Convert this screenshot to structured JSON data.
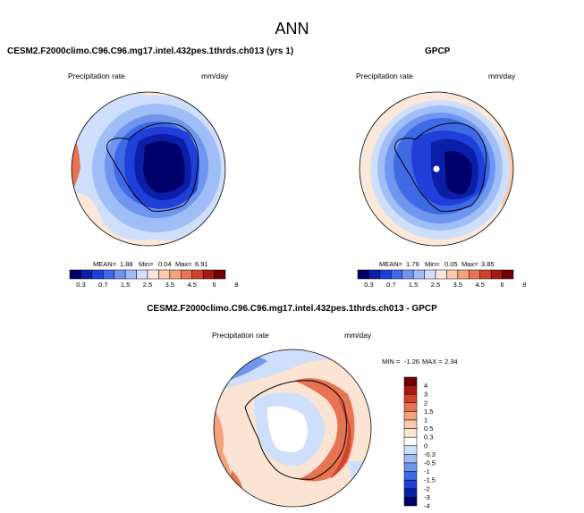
{
  "page_title": "ANN",
  "chart_data": [
    {
      "type": "heatmap",
      "projection": "south-polar-stereographic",
      "title": "CESM2.F2000climo.C96.C96.mg17.intel.432pes.1thrds.ch013 (yrs 1)",
      "variable_label": "Precipitation rate",
      "units_label": "mm/day",
      "stats": {
        "mean_label": "MEAN=",
        "mean": "1.88",
        "min_label": "Min=",
        "min": "0.04",
        "max_label": "Max=",
        "max": "6.91"
      },
      "levels": [
        "0.3",
        "0.7",
        "1",
        "1.5",
        "2",
        "2.5",
        "3",
        "3.5",
        "4",
        "4.5",
        "5",
        "6",
        "7",
        "8"
      ],
      "level_labels": [
        "0.3",
        "0.7",
        "1.5",
        "2.5",
        "3.5",
        "4.5",
        "6",
        "8"
      ],
      "colors": [
        "#00006a",
        "#0a1ea8",
        "#1f3fd8",
        "#3f6ae6",
        "#6f95ef",
        "#9fbdf6",
        "#cfdffb",
        "#fbe8d8",
        "#f8cbaa",
        "#f2a27d",
        "#e67352",
        "#d0422c",
        "#a8180f",
        "#700000"
      ]
    },
    {
      "type": "heatmap",
      "projection": "south-polar-stereographic",
      "title": "GPCP",
      "variable_label": "Precipitation rate",
      "units_label": "mm/day",
      "stats": {
        "mean_label": "MEAN=",
        "mean": "1.79",
        "min_label": "Min=",
        "min": "0.05",
        "max_label": "Max=",
        "max": "3.85"
      },
      "levels": [
        "0.3",
        "0.7",
        "1",
        "1.5",
        "2",
        "2.5",
        "3",
        "3.5",
        "4",
        "4.5",
        "5",
        "6",
        "7",
        "8"
      ],
      "level_labels": [
        "0.3",
        "0.7",
        "1.5",
        "2.5",
        "3.5",
        "4.5",
        "6",
        "8"
      ],
      "colors": [
        "#00006a",
        "#0a1ea8",
        "#1f3fd8",
        "#3f6ae6",
        "#6f95ef",
        "#9fbdf6",
        "#cfdffb",
        "#fbe8d8",
        "#f8cbaa",
        "#f2a27d",
        "#e67352",
        "#d0422c",
        "#a8180f",
        "#700000"
      ]
    },
    {
      "type": "heatmap",
      "projection": "south-polar-stereographic",
      "title": "CESM2.F2000climo.C96.C96.mg17.intel.432pes.1thrds.ch013 - GPCP",
      "variable_label": "Precipitation rate",
      "units_label": "mm/day",
      "stats": {
        "min_label": "MIN =",
        "min": "-1.26",
        "max_label": "MAX =",
        "max": "2.34"
      },
      "levels": [
        "-4",
        "-3",
        "-2",
        "-1.5",
        "-1",
        "-0.5",
        "-0.3",
        "0",
        "0.3",
        "0.5",
        "1",
        "1.5",
        "2",
        "3",
        "4"
      ],
      "colors": [
        "#00006a",
        "#0a1ea8",
        "#1f3fd8",
        "#3f6ae6",
        "#6f95ef",
        "#9fbdf6",
        "#cfdffb",
        "#ffffff",
        "#fbe4d4",
        "#f8cbaa",
        "#f2a27d",
        "#e67352",
        "#d0422c",
        "#a8180f",
        "#700000"
      ]
    }
  ]
}
